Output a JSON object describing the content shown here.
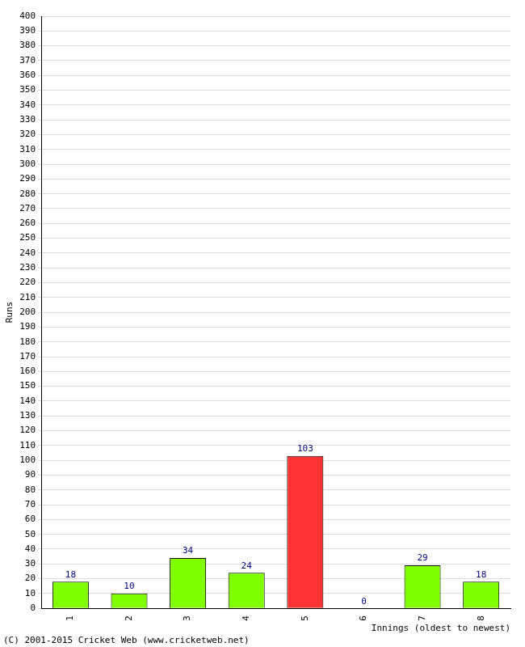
{
  "chart_data": {
    "type": "bar",
    "categories": [
      "1",
      "2",
      "3",
      "4",
      "5",
      "6",
      "7",
      "8"
    ],
    "values": [
      18,
      10,
      34,
      24,
      103,
      0,
      29,
      18
    ],
    "colors": [
      "#7fff00",
      "#7fff00",
      "#7fff00",
      "#7fff00",
      "#ff3333",
      "#7fff00",
      "#7fff00",
      "#7fff00"
    ],
    "x_label": "Innings (oldest to newest)",
    "y_label": "Runs",
    "annotations": [
      "(C) 2001-2015 Cricket Web (www.cricketweb.net)"
    ],
    "ylim": [
      0,
      400
    ],
    "yticks": [
      0,
      10,
      20,
      30,
      40,
      50,
      60,
      70,
      80,
      90,
      100,
      110,
      120,
      130,
      140,
      150,
      160,
      170,
      180,
      190,
      200,
      210,
      220,
      230,
      240,
      250,
      260,
      270,
      280,
      290,
      300,
      310,
      320,
      330,
      340,
      350,
      360,
      370,
      380,
      390,
      400
    ],
    "grid": true,
    "data_labels": true
  }
}
